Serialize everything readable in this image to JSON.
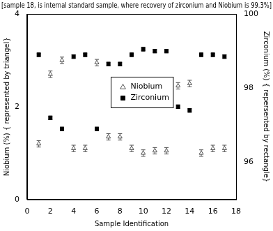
{
  "chart_data": {
    "type": "scatter",
    "title": "[sample 18, is internal standard sample, where recovery of zirconium and Niobium is 99.3%]",
    "x_label": "Sample Identification",
    "y_label": "Niobium (%) { represented by triangel}",
    "y2_label": "Zirconium (%) { repersented by rectangle}",
    "x": [
      1,
      2,
      3,
      4,
      5,
      6,
      7,
      8,
      9,
      10,
      11,
      12,
      13,
      14,
      15,
      16,
      17
    ],
    "series": [
      {
        "name": "Niobium",
        "color": "#555555",
        "marker": "triangle-open",
        "values": [
          1.2,
          2.7,
          3.0,
          1.1,
          1.1,
          2.95,
          1.35,
          1.35,
          1.1,
          1.0,
          1.05,
          1.05,
          2.45,
          2.5,
          1.0,
          1.1,
          1.1
        ],
        "errors": [
          0.07,
          0.07,
          0.07,
          0.07,
          0.07,
          0.07,
          0.07,
          0.07,
          0.07,
          0.07,
          0.07,
          0.07,
          0.07,
          0.07,
          0.07,
          0.07,
          0.07
        ]
      },
      {
        "name": "Zirconium",
        "color": "#000000",
        "marker": "square",
        "axis": "y2",
        "values": [
          98.9,
          97.2,
          96.9,
          98.85,
          98.9,
          96.9,
          98.65,
          98.65,
          98.9,
          99.05,
          99.0,
          99.0,
          97.5,
          97.4,
          98.9,
          98.9,
          98.85
        ],
        "errors": [
          0.05,
          0.05,
          0.05,
          0.05,
          0.05,
          0.05,
          0.05,
          0.05,
          0.05,
          0.05,
          0.05,
          0.05,
          0.05,
          0.05,
          0.05,
          0.05,
          0.05
        ]
      }
    ],
    "xlim": [
      0,
      18
    ],
    "xticks": [
      0,
      2,
      4,
      6,
      8,
      10,
      12,
      14,
      16,
      18
    ],
    "ylim": [
      0,
      4
    ],
    "yticks": [
      0,
      2,
      4
    ],
    "y2lim": [
      95,
      100
    ],
    "y2ticks": [
      96,
      98,
      100
    ],
    "grid": false,
    "legend": "center"
  }
}
